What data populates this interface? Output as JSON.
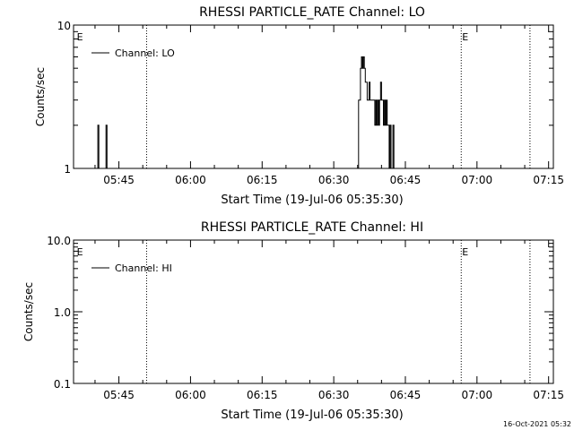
{
  "footer": {
    "timestamp": "16-Oct-2021 05:32"
  },
  "chart_data": [
    {
      "type": "line",
      "title": "RHESSI PARTICLE_RATE Channel: LO",
      "xlabel": "Start Time (19-Jul-06 05:35:30)",
      "ylabel": "Counts/sec",
      "yscale": "log",
      "ylim": [
        1,
        10
      ],
      "y_ticks": [
        {
          "value": 1,
          "label": "1"
        },
        {
          "value": 10,
          "label": "10"
        }
      ],
      "xlim": [
        "05:35:30",
        "07:16:00"
      ],
      "x_ticks": [
        {
          "value": "05:45",
          "label": "05:45"
        },
        {
          "value": "06:00",
          "label": "06:00"
        },
        {
          "value": "06:15",
          "label": "06:15"
        },
        {
          "value": "06:30",
          "label": "06:30"
        },
        {
          "value": "06:45",
          "label": "06:45"
        },
        {
          "value": "07:00",
          "label": "07:00"
        },
        {
          "value": "07:15",
          "label": "07:15"
        }
      ],
      "vertical_markers": [
        {
          "time": "05:36:00",
          "label": "E",
          "style": "none"
        },
        {
          "time": "05:50:48",
          "label": "",
          "style": "dotted"
        },
        {
          "time": "06:56:42",
          "label": "E",
          "style": "dotted"
        },
        {
          "time": "07:11:06",
          "label": "",
          "style": "dotted"
        }
      ],
      "legend": {
        "position": "top-left",
        "entries": [
          "Channel: LO"
        ]
      },
      "series": [
        {
          "name": "Channel: LO",
          "color": "#000000",
          "points": [
            [
              "05:40:24",
              1
            ],
            [
              "05:40:36",
              2
            ],
            [
              "05:40:48",
              1
            ],
            [
              "05:42:06",
              1
            ],
            [
              "05:42:18",
              2
            ],
            [
              "05:42:30",
              1
            ],
            [
              "06:35:00",
              1
            ],
            [
              "06:35:12",
              3
            ],
            [
              "06:35:30",
              3
            ],
            [
              "06:35:36",
              5
            ],
            [
              "06:35:48",
              6
            ],
            [
              "06:36:00",
              5
            ],
            [
              "06:36:12",
              6
            ],
            [
              "06:36:24",
              5
            ],
            [
              "06:36:36",
              4
            ],
            [
              "06:36:48",
              4
            ],
            [
              "06:37:00",
              3
            ],
            [
              "06:37:12",
              3
            ],
            [
              "06:37:24",
              4
            ],
            [
              "06:37:36",
              3
            ],
            [
              "06:37:48",
              3
            ],
            [
              "06:38:00",
              3
            ],
            [
              "06:38:30",
              3
            ],
            [
              "06:38:36",
              2
            ],
            [
              "06:38:48",
              3
            ],
            [
              "06:39:00",
              2
            ],
            [
              "06:39:12",
              3
            ],
            [
              "06:39:24",
              2
            ],
            [
              "06:39:36",
              3
            ],
            [
              "06:39:48",
              4
            ],
            [
              "06:40:00",
              3
            ],
            [
              "06:40:12",
              3
            ],
            [
              "06:40:24",
              2
            ],
            [
              "06:40:36",
              3
            ],
            [
              "06:40:48",
              2
            ],
            [
              "06:41:00",
              3
            ],
            [
              "06:41:12",
              2
            ],
            [
              "06:41:24",
              2
            ],
            [
              "06:41:36",
              1
            ],
            [
              "06:41:48",
              2
            ],
            [
              "06:42:00",
              1
            ],
            [
              "06:42:12",
              1
            ],
            [
              "06:42:24",
              2
            ],
            [
              "06:42:36",
              1
            ]
          ]
        }
      ]
    },
    {
      "type": "line",
      "title": "RHESSI PARTICLE_RATE Channel: HI",
      "xlabel": "Start Time (19-Jul-06 05:35:30)",
      "ylabel": "Counts/sec",
      "yscale": "log",
      "ylim": [
        0.1,
        10
      ],
      "y_ticks": [
        {
          "value": 0.1,
          "label": "0.1"
        },
        {
          "value": 1,
          "label": "1.0"
        },
        {
          "value": 10,
          "label": "10.0"
        }
      ],
      "xlim": [
        "05:35:30",
        "07:16:00"
      ],
      "x_ticks": [
        {
          "value": "05:45",
          "label": "05:45"
        },
        {
          "value": "06:00",
          "label": "06:00"
        },
        {
          "value": "06:15",
          "label": "06:15"
        },
        {
          "value": "06:30",
          "label": "06:30"
        },
        {
          "value": "06:45",
          "label": "06:45"
        },
        {
          "value": "07:00",
          "label": "07:00"
        },
        {
          "value": "07:15",
          "label": "07:15"
        }
      ],
      "vertical_markers": [
        {
          "time": "05:36:00",
          "label": "E",
          "style": "none"
        },
        {
          "time": "05:50:48",
          "label": "",
          "style": "dotted"
        },
        {
          "time": "06:56:42",
          "label": "E",
          "style": "dotted"
        },
        {
          "time": "07:11:06",
          "label": "",
          "style": "dotted"
        }
      ],
      "legend": {
        "position": "top-left",
        "entries": [
          "Channel: HI"
        ]
      },
      "series": [
        {
          "name": "Channel: HI",
          "color": "#000000",
          "points": []
        }
      ]
    }
  ]
}
